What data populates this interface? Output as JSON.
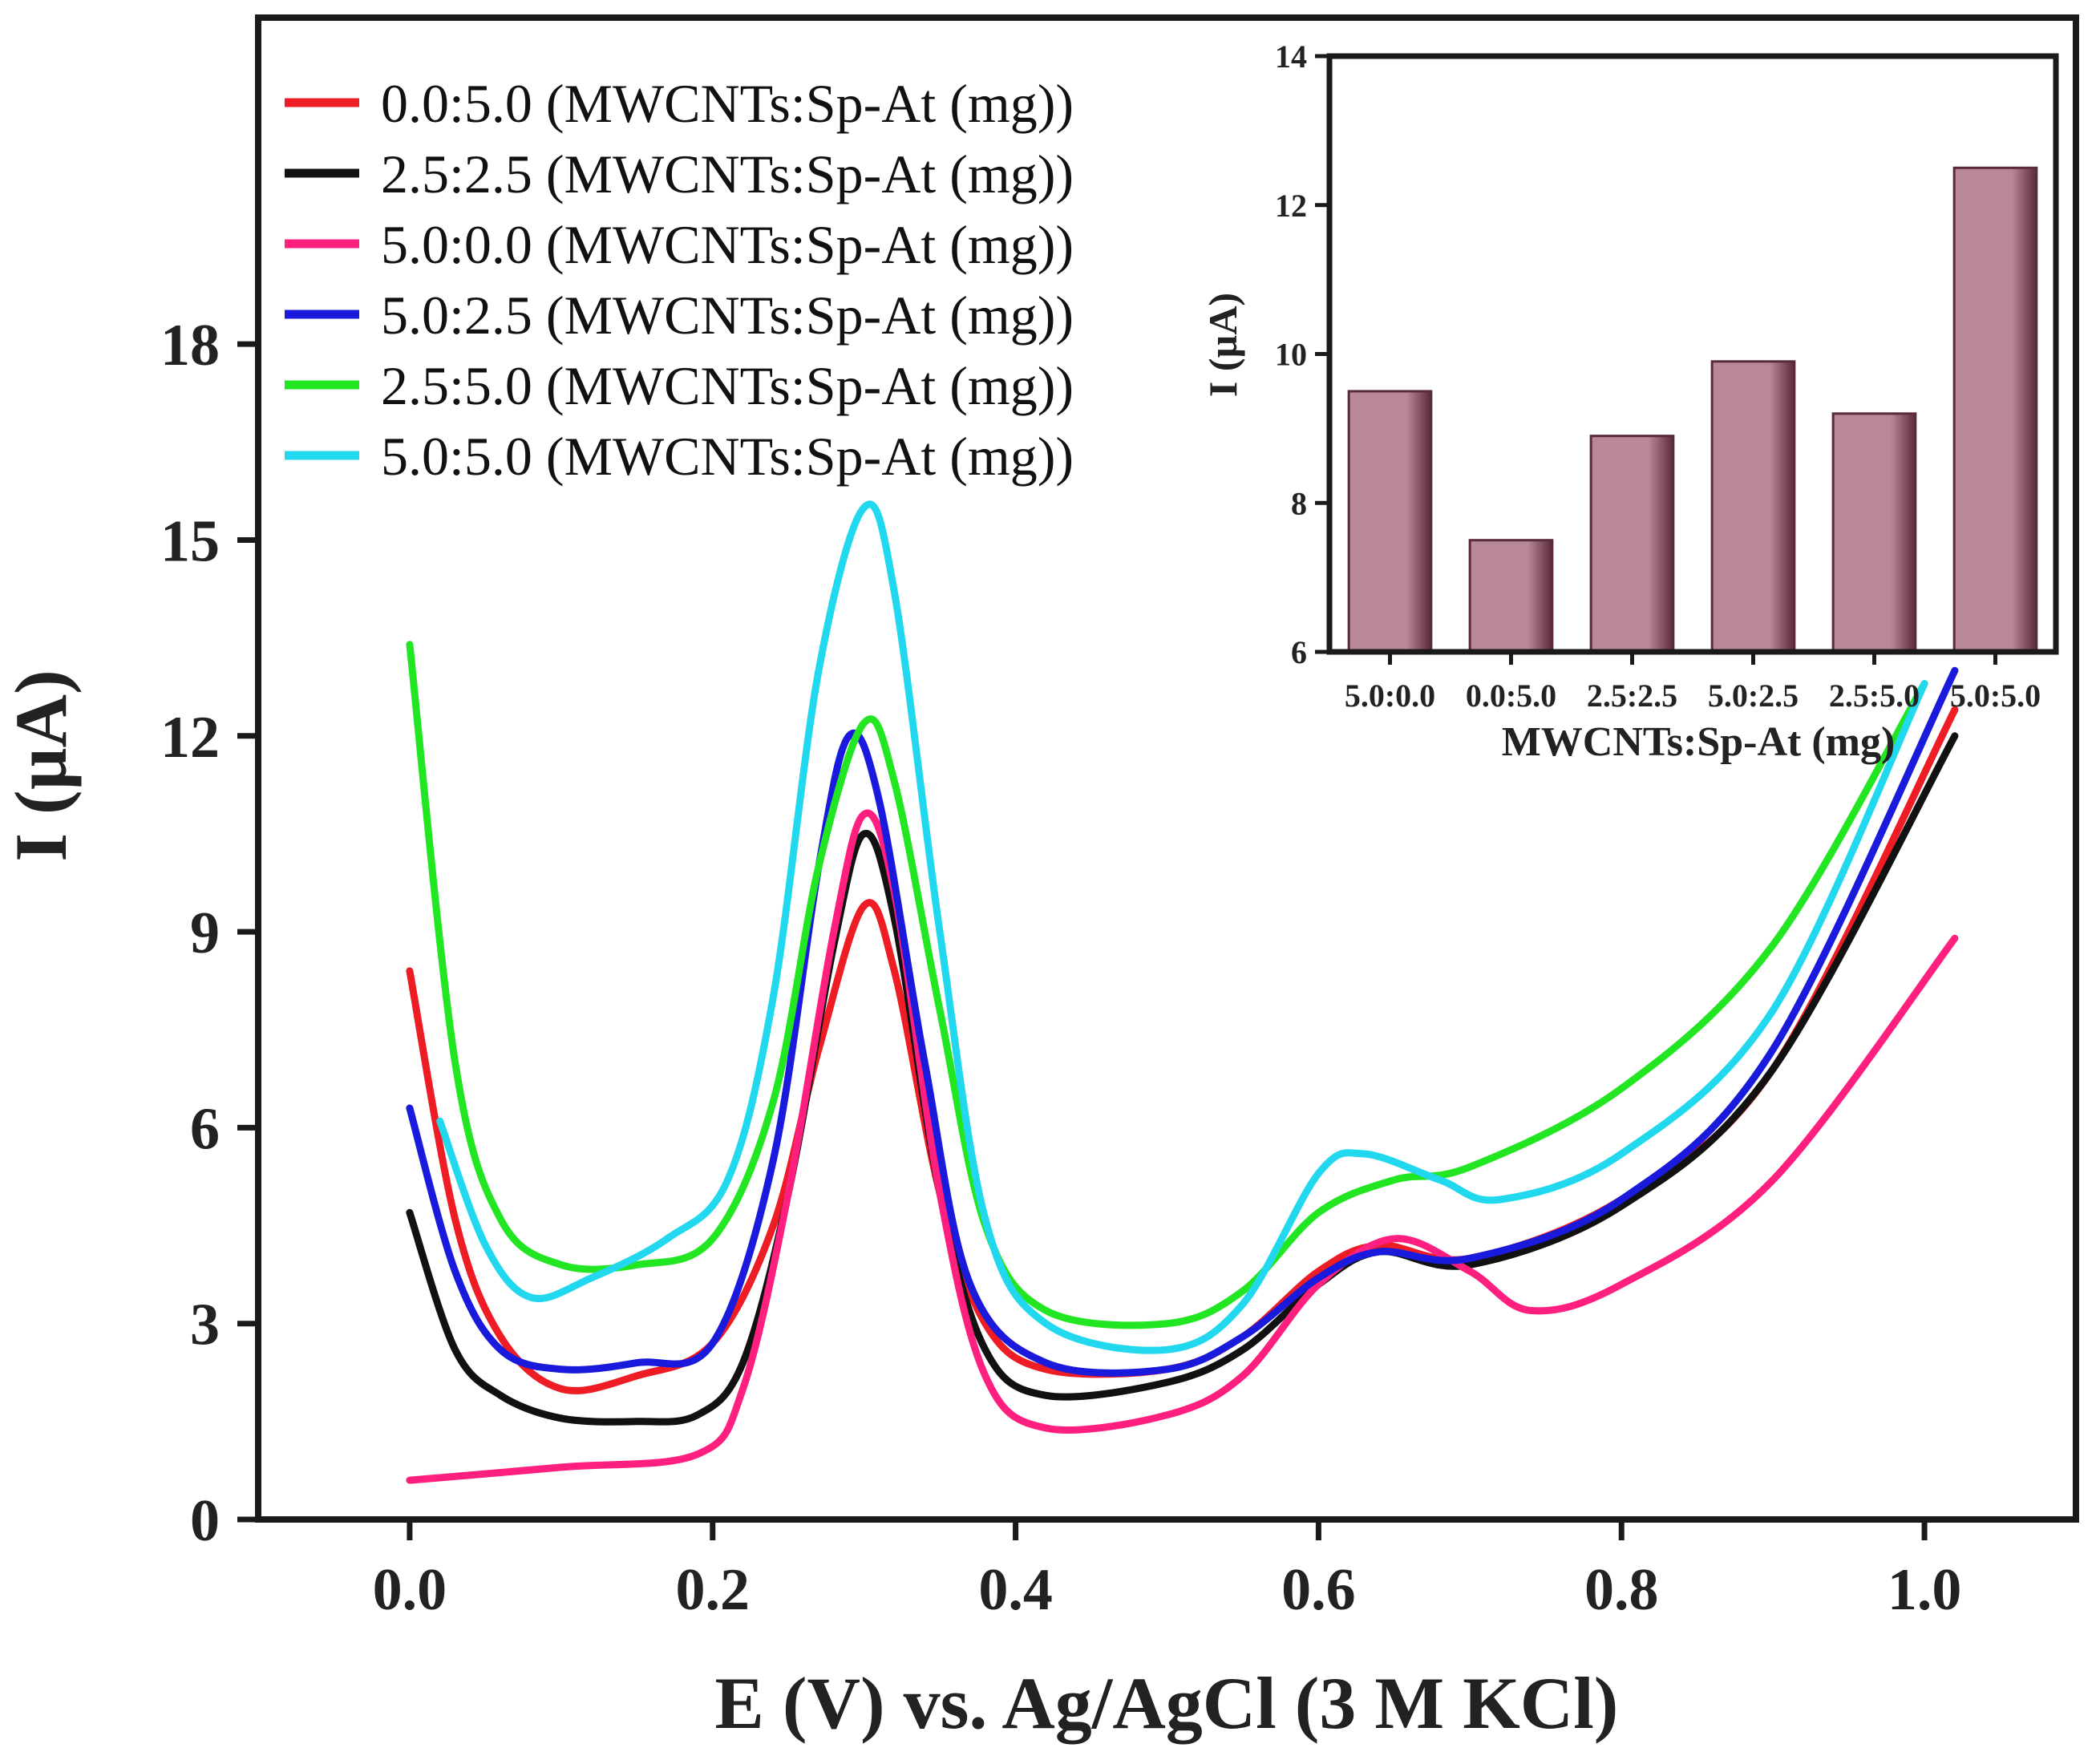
{
  "chart_data": [
    {
      "type": "line",
      "title": "",
      "xlabel": "E (V) vs. Ag/AgCl (3 M KCl)",
      "ylabel": "I (µA)",
      "xlim": [
        -0.1,
        1.1
      ],
      "ylim": [
        0,
        23
      ],
      "x_ticks": [
        0.0,
        0.2,
        0.4,
        0.6,
        0.8,
        1.0
      ],
      "x_tick_labels": [
        "0.0",
        "0.2",
        "0.4",
        "0.6",
        "0.8",
        "1.0"
      ],
      "y_ticks": [
        0,
        3,
        6,
        9,
        12,
        15,
        18
      ],
      "y_tick_labels": [
        "0",
        "3",
        "6",
        "9",
        "12",
        "15",
        "18"
      ],
      "legend_position": "top-left",
      "series": [
        {
          "name": "0.0:5.0 (MWCNTs:Sp-At (mg))",
          "color": "#ee1c24",
          "points": [
            [
              0.0,
              8.4
            ],
            [
              0.03,
              4.6
            ],
            [
              0.06,
              2.8
            ],
            [
              0.1,
              2.0
            ],
            [
              0.15,
              2.2
            ],
            [
              0.2,
              2.7
            ],
            [
              0.24,
              4.5
            ],
            [
              0.27,
              7.2
            ],
            [
              0.3,
              9.4
            ],
            [
              0.32,
              8.4
            ],
            [
              0.35,
              5.0
            ],
            [
              0.38,
              3.0
            ],
            [
              0.42,
              2.3
            ],
            [
              0.5,
              2.3
            ],
            [
              0.55,
              2.8
            ],
            [
              0.6,
              3.8
            ],
            [
              0.64,
              4.2
            ],
            [
              0.7,
              4.0
            ],
            [
              0.8,
              4.9
            ],
            [
              0.9,
              6.9
            ],
            [
              1.02,
              12.4
            ]
          ]
        },
        {
          "name": "2.5:2.5 (MWCNTs:Sp-At (mg))",
          "color": "#111111",
          "points": [
            [
              0.0,
              4.7
            ],
            [
              0.03,
              2.6
            ],
            [
              0.06,
              1.9
            ],
            [
              0.1,
              1.55
            ],
            [
              0.15,
              1.5
            ],
            [
              0.19,
              1.6
            ],
            [
              0.22,
              2.4
            ],
            [
              0.25,
              5.0
            ],
            [
              0.28,
              8.8
            ],
            [
              0.3,
              10.5
            ],
            [
              0.32,
              9.2
            ],
            [
              0.35,
              5.0
            ],
            [
              0.38,
              2.6
            ],
            [
              0.42,
              1.9
            ],
            [
              0.5,
              2.1
            ],
            [
              0.55,
              2.6
            ],
            [
              0.6,
              3.6
            ],
            [
              0.64,
              4.1
            ],
            [
              0.7,
              3.9
            ],
            [
              0.8,
              4.8
            ],
            [
              0.9,
              6.9
            ],
            [
              1.02,
              12.0
            ]
          ]
        },
        {
          "name": "5.0:0.0 (MWCNTs:Sp-At (mg))",
          "color": "#ff1f7f",
          "points": [
            [
              0.0,
              0.6
            ],
            [
              0.1,
              0.8
            ],
            [
              0.19,
              1.0
            ],
            [
              0.22,
              2.0
            ],
            [
              0.25,
              5.0
            ],
            [
              0.28,
              9.0
            ],
            [
              0.3,
              10.8
            ],
            [
              0.32,
              9.6
            ],
            [
              0.35,
              5.0
            ],
            [
              0.38,
              2.2
            ],
            [
              0.42,
              1.4
            ],
            [
              0.5,
              1.6
            ],
            [
              0.55,
              2.2
            ],
            [
              0.6,
              3.6
            ],
            [
              0.65,
              4.3
            ],
            [
              0.7,
              3.8
            ],
            [
              0.74,
              3.2
            ],
            [
              0.8,
              3.6
            ],
            [
              0.9,
              5.2
            ],
            [
              1.02,
              8.9
            ]
          ]
        },
        {
          "name": "5.0:2.5 (MWCNTs:Sp-At (mg))",
          "color": "#1a1adc",
          "points": [
            [
              0.0,
              6.3
            ],
            [
              0.03,
              3.8
            ],
            [
              0.06,
              2.6
            ],
            [
              0.1,
              2.3
            ],
            [
              0.15,
              2.4
            ],
            [
              0.2,
              2.7
            ],
            [
              0.24,
              5.5
            ],
            [
              0.27,
              10.0
            ],
            [
              0.29,
              12.0
            ],
            [
              0.31,
              11.0
            ],
            [
              0.34,
              7.0
            ],
            [
              0.37,
              3.6
            ],
            [
              0.42,
              2.4
            ],
            [
              0.5,
              2.3
            ],
            [
              0.55,
              2.8
            ],
            [
              0.6,
              3.7
            ],
            [
              0.64,
              4.1
            ],
            [
              0.7,
              4.0
            ],
            [
              0.8,
              4.9
            ],
            [
              0.9,
              7.2
            ],
            [
              1.02,
              13.0
            ]
          ]
        },
        {
          "name": "2.5:5.0 (MWCNTs:Sp-At (mg))",
          "color": "#22e622",
          "points": [
            [
              0.0,
              13.4
            ],
            [
              0.03,
              7.0
            ],
            [
              0.06,
              4.6
            ],
            [
              0.1,
              3.9
            ],
            [
              0.15,
              3.9
            ],
            [
              0.2,
              4.3
            ],
            [
              0.24,
              6.4
            ],
            [
              0.27,
              10.0
            ],
            [
              0.3,
              12.2
            ],
            [
              0.32,
              11.3
            ],
            [
              0.35,
              7.8
            ],
            [
              0.38,
              4.5
            ],
            [
              0.42,
              3.2
            ],
            [
              0.5,
              3.0
            ],
            [
              0.55,
              3.5
            ],
            [
              0.6,
              4.7
            ],
            [
              0.65,
              5.2
            ],
            [
              0.7,
              5.4
            ],
            [
              0.8,
              6.6
            ],
            [
              0.9,
              8.8
            ],
            [
              1.0,
              12.8
            ]
          ]
        },
        {
          "name": "5.0:5.0 (MWCNTs:Sp-At (mg))",
          "color": "#22d8ee",
          "points": [
            [
              0.02,
              6.1
            ],
            [
              0.05,
              4.2
            ],
            [
              0.08,
              3.4
            ],
            [
              0.12,
              3.7
            ],
            [
              0.17,
              4.3
            ],
            [
              0.21,
              5.2
            ],
            [
              0.24,
              8.0
            ],
            [
              0.27,
              13.0
            ],
            [
              0.3,
              15.5
            ],
            [
              0.32,
              14.2
            ],
            [
              0.35,
              9.0
            ],
            [
              0.38,
              4.6
            ],
            [
              0.42,
              3.0
            ],
            [
              0.5,
              2.6
            ],
            [
              0.55,
              3.3
            ],
            [
              0.6,
              5.3
            ],
            [
              0.63,
              5.6
            ],
            [
              0.68,
              5.2
            ],
            [
              0.72,
              4.9
            ],
            [
              0.8,
              5.6
            ],
            [
              0.9,
              7.8
            ],
            [
              1.0,
              12.8
            ]
          ]
        }
      ]
    },
    {
      "type": "bar",
      "title": "",
      "xlabel": "MWCNTs:Sp-At (mg)",
      "ylabel": "I (µA)",
      "ylim": [
        6,
        14
      ],
      "y_ticks": [
        6,
        8,
        10,
        12,
        14
      ],
      "y_tick_labels": [
        "6",
        "8",
        "10",
        "12",
        "14"
      ],
      "categories": [
        "5.0:0.0",
        "0.0:5.0",
        "2.5:2.5",
        "5.0:2.5",
        "2.5:5.0",
        "5.0:5.0"
      ],
      "values": [
        9.5,
        7.5,
        8.9,
        9.9,
        9.2,
        12.5
      ],
      "bar_color": "#b88898",
      "bar_edge_color": "#5a2a3a"
    }
  ]
}
